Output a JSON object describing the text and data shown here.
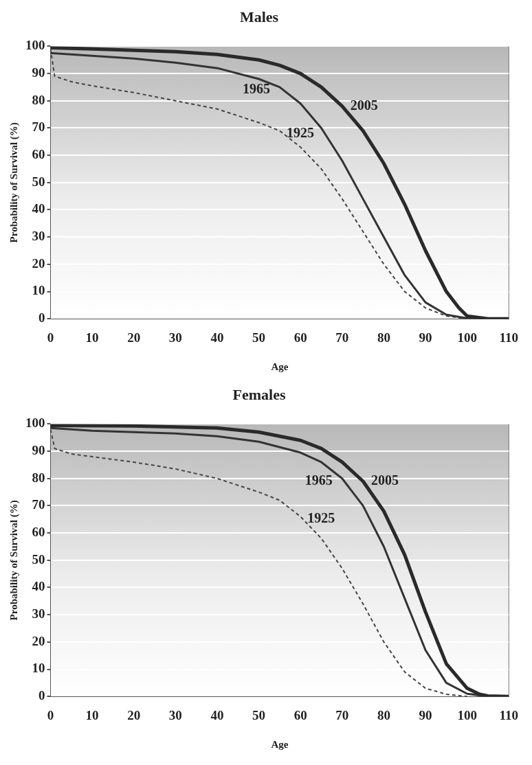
{
  "chart_data": [
    {
      "type": "line",
      "title": "Males",
      "xlabel": "Age",
      "ylabel": "Probability of Survival (%)",
      "xlim": [
        0,
        110
      ],
      "xticks": [
        0,
        10,
        20,
        30,
        40,
        50,
        60,
        70,
        80,
        90,
        100,
        110
      ],
      "ylim": [
        0,
        100
      ],
      "yticks": [
        0,
        10,
        20,
        30,
        40,
        50,
        60,
        70,
        80,
        90,
        100
      ],
      "grid": "y",
      "marker": "none",
      "series": [
        {
          "name": "2005",
          "color": "#2a2a2a",
          "line_style": "solid",
          "x": [
            0,
            10,
            20,
            30,
            40,
            50,
            55,
            60,
            65,
            70,
            75,
            80,
            85,
            90,
            95,
            98,
            100,
            105,
            110
          ],
          "values": [
            99.5,
            99,
            98.5,
            98,
            97,
            95,
            93,
            90,
            85,
            78,
            69,
            57,
            42,
            25,
            10,
            4,
            1,
            0,
            0
          ]
        },
        {
          "name": "1965",
          "color": "#333333",
          "line_style": "solid",
          "x": [
            0,
            10,
            20,
            30,
            40,
            50,
            55,
            60,
            65,
            70,
            75,
            80,
            85,
            90,
            95,
            100,
            110
          ],
          "values": [
            97.5,
            96.5,
            95.5,
            94,
            92,
            88,
            85,
            79,
            70,
            58,
            44,
            30,
            16,
            6,
            1.5,
            0.2,
            0
          ]
        },
        {
          "name": "1925",
          "color": "#444444",
          "line_style": "dashed",
          "x": [
            0,
            1,
            5,
            10,
            20,
            30,
            40,
            50,
            55,
            60,
            65,
            70,
            75,
            80,
            85,
            90,
            95,
            100
          ],
          "values": [
            99,
            89,
            87,
            85.5,
            83,
            80,
            77,
            72,
            69,
            63,
            55,
            44,
            32,
            20,
            10,
            4,
            1,
            0
          ]
        }
      ]
    },
    {
      "type": "line",
      "title": "Females",
      "xlabel": "Age",
      "ylabel": "Probability of Survival (%)",
      "xlim": [
        0,
        110
      ],
      "xticks": [
        0,
        10,
        20,
        30,
        40,
        50,
        60,
        70,
        80,
        90,
        100,
        110
      ],
      "ylim": [
        0,
        100
      ],
      "yticks": [
        0,
        10,
        20,
        30,
        40,
        50,
        60,
        70,
        80,
        90,
        100
      ],
      "grid": "y",
      "marker": "none",
      "series": [
        {
          "name": "2005",
          "color": "#2a2a2a",
          "line_style": "solid",
          "x": [
            0,
            20,
            40,
            50,
            60,
            65,
            70,
            75,
            80,
            85,
            90,
            95,
            100,
            103,
            105,
            110
          ],
          "values": [
            99.5,
            99.3,
            98.5,
            97,
            94,
            91,
            86,
            79,
            68,
            52,
            31,
            12,
            3,
            0.8,
            0.2,
            0
          ]
        },
        {
          "name": "1965",
          "color": "#333333",
          "line_style": "solid",
          "x": [
            0,
            10,
            20,
            30,
            40,
            50,
            60,
            65,
            70,
            75,
            80,
            85,
            90,
            95,
            100,
            105
          ],
          "values": [
            98.5,
            97.5,
            97,
            96.5,
            95.5,
            93.5,
            89.5,
            86,
            80,
            70,
            55,
            36,
            17,
            5,
            1,
            0
          ]
        },
        {
          "name": "1925",
          "color": "#444444",
          "line_style": "dashed",
          "x": [
            0,
            1,
            5,
            10,
            20,
            30,
            40,
            50,
            55,
            60,
            65,
            70,
            75,
            80,
            85,
            90,
            95,
            100
          ],
          "values": [
            98,
            91,
            89,
            88,
            86,
            83.5,
            80,
            75,
            72,
            66,
            58,
            47,
            34,
            20,
            9,
            3,
            0.8,
            0
          ]
        }
      ]
    }
  ]
}
